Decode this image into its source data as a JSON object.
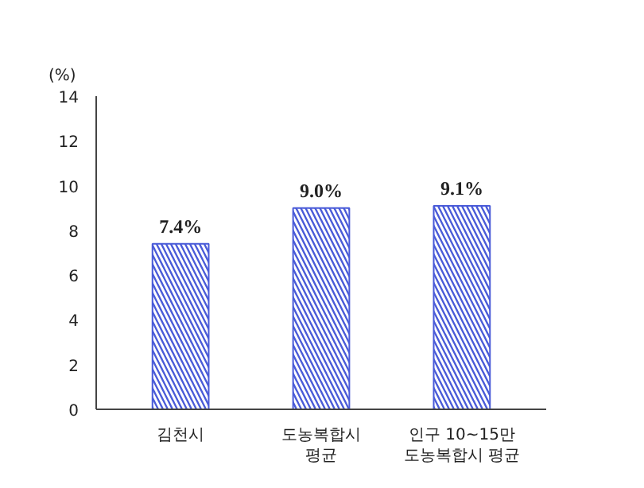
{
  "chart_data": {
    "type": "bar",
    "ylabel": "(%)",
    "categories": [
      "김천시",
      "도농복합시\n평균",
      "인구 10~15만\n도농복합시 평균"
    ],
    "values": [
      7.4,
      9.0,
      9.1
    ],
    "value_labels": [
      "7.4%",
      "9.0%",
      "9.1%"
    ],
    "color": "#4a5bd8",
    "ylim": [
      0,
      14
    ],
    "yticks": [
      0,
      2,
      4,
      6,
      8,
      10,
      12,
      14
    ],
    "grid": false
  }
}
